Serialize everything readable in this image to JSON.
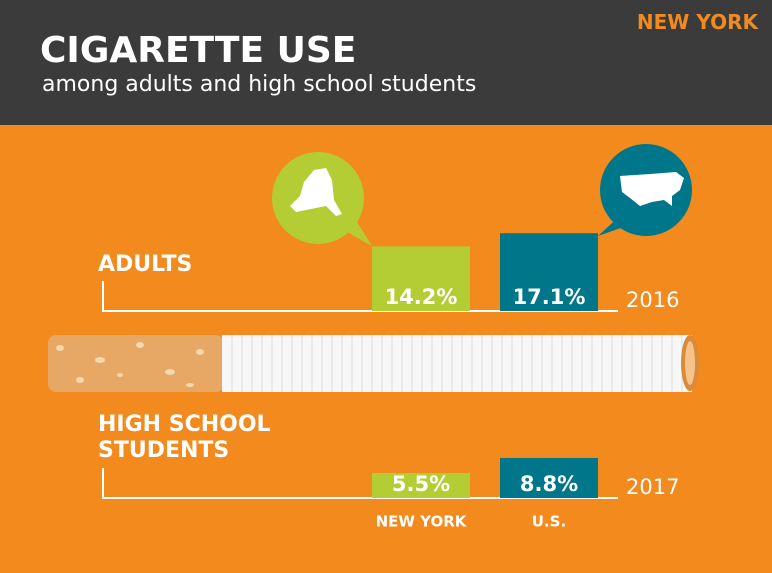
{
  "header": {
    "region": "NEW YORK",
    "title": "CIGARETTE USE",
    "subtitle": "among adults and high school students"
  },
  "chart_data": [
    {
      "type": "bar",
      "title": "ADULTS",
      "year": 2016,
      "categories": [
        null,
        null
      ],
      "values": [
        14.2,
        17.1
      ],
      "value_labels": [
        "14.2%",
        "17.1%"
      ],
      "colors": [
        "#b5cd34",
        "#00768b"
      ]
    },
    {
      "type": "bar",
      "title": "HIGH SCHOOL STUDENTS",
      "year": 2017,
      "categories": [
        "NEW YORK",
        "U.S."
      ],
      "values": [
        5.5,
        8.8
      ],
      "value_labels": [
        "5.5%",
        "8.8%"
      ],
      "colors": [
        "#b5cd34",
        "#00768b"
      ]
    }
  ]
}
